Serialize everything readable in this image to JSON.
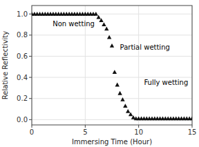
{
  "chart_data": {
    "type": "scatter",
    "xlabel": "Immersing Time (Hour)",
    "ylabel": "Relative Reflectivity",
    "x": [
      0.0,
      0.25,
      0.5,
      0.75,
      1.0,
      1.25,
      1.5,
      1.75,
      2.0,
      2.25,
      2.5,
      2.75,
      3.0,
      3.25,
      3.5,
      3.75,
      4.0,
      4.25,
      4.5,
      4.75,
      5.0,
      5.25,
      5.5,
      5.75,
      6.0,
      6.25,
      6.5,
      6.75,
      7.0,
      7.25,
      7.5,
      7.75,
      8.0,
      8.25,
      8.5,
      8.75,
      9.0,
      9.25,
      9.5,
      9.75,
      10.0,
      10.25,
      10.5,
      10.75,
      11.0,
      11.25,
      11.5,
      11.75,
      12.0,
      12.25,
      12.5,
      12.75,
      13.0,
      13.25,
      13.5,
      13.75,
      14.0,
      14.25,
      14.5,
      14.75,
      15.0
    ],
    "values": [
      1.0,
      1.0,
      1.0,
      1.0,
      1.0,
      1.0,
      1.0,
      1.0,
      1.0,
      1.0,
      1.0,
      1.0,
      1.0,
      1.0,
      1.0,
      1.0,
      1.0,
      1.0,
      1.0,
      1.0,
      1.0,
      1.0,
      1.0,
      1.0,
      1.0,
      0.97,
      0.94,
      0.9,
      0.86,
      0.78,
      0.7,
      0.45,
      0.33,
      0.25,
      0.19,
      0.13,
      0.08,
      0.05,
      0.02,
      0.01,
      0.01,
      0.01,
      0.01,
      0.01,
      0.01,
      0.01,
      0.01,
      0.01,
      0.01,
      0.01,
      0.01,
      0.01,
      0.01,
      0.01,
      0.01,
      0.01,
      0.01,
      0.01,
      0.01,
      0.01,
      0.01
    ],
    "xlim": [
      0,
      15
    ],
    "ylim": [
      -0.05,
      1.08
    ],
    "xticks": [
      0,
      5,
      10,
      15
    ],
    "yticks": [
      {
        "value": 0.0,
        "label": "0.0"
      },
      0.2,
      0.4,
      0.6,
      0.8,
      {
        "value": 1.0,
        "label": "1.0"
      }
    ],
    "color": "#111111",
    "marker": "triangle",
    "annotations": [
      "Non wetting",
      "Partial wetting",
      "Fully wetting"
    ]
  }
}
